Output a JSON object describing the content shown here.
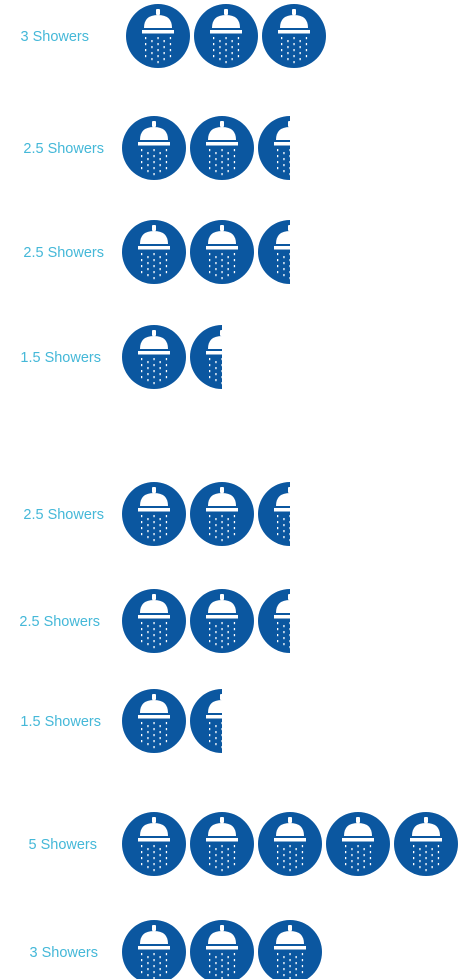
{
  "colors": {
    "icon_fill": "#0b57a0",
    "icon_glyph": "#ffffff",
    "label_text": "#45b8d8"
  },
  "icon_name": "shower-icon",
  "chart_data": {
    "type": "pictogram",
    "unit": "Showers",
    "rows": [
      {
        "label": "3 Showers",
        "value": 3
      },
      {
        "label": "2.5 Showers",
        "value": 2.5
      },
      {
        "label": "2.5 Showers",
        "value": 2.5
      },
      {
        "label": "1.5 Showers",
        "value": 1.5
      },
      {
        "label": "2.5 Showers",
        "value": 2.5
      },
      {
        "label": "2.5 Showers",
        "value": 2.5
      },
      {
        "label": "1.5 Showers",
        "value": 1.5
      },
      {
        "label": "5 Showers",
        "value": 5
      },
      {
        "label": "3 Showers",
        "value": 3
      }
    ]
  }
}
